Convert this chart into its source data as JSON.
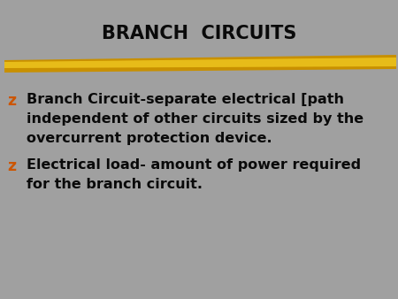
{
  "title": "BRANCH  CIRCUITS",
  "title_color": "#0a0a0a",
  "title_fontsize": 15,
  "background_color": "#a0a0a0",
  "bullet_color": "#cc5500",
  "text_color": "#0a0a0a",
  "bullet1_line1": "Branch Circuit-separate electrical [path",
  "bullet1_line2": "independent of other circuits sized by the",
  "bullet1_line3": "overcurrent protection device.",
  "bullet2_line1": "Electrical load- amount of power required",
  "bullet2_line2": "for the branch circuit.",
  "text_fontsize": 11.5,
  "font_family": "DejaVu Sans"
}
